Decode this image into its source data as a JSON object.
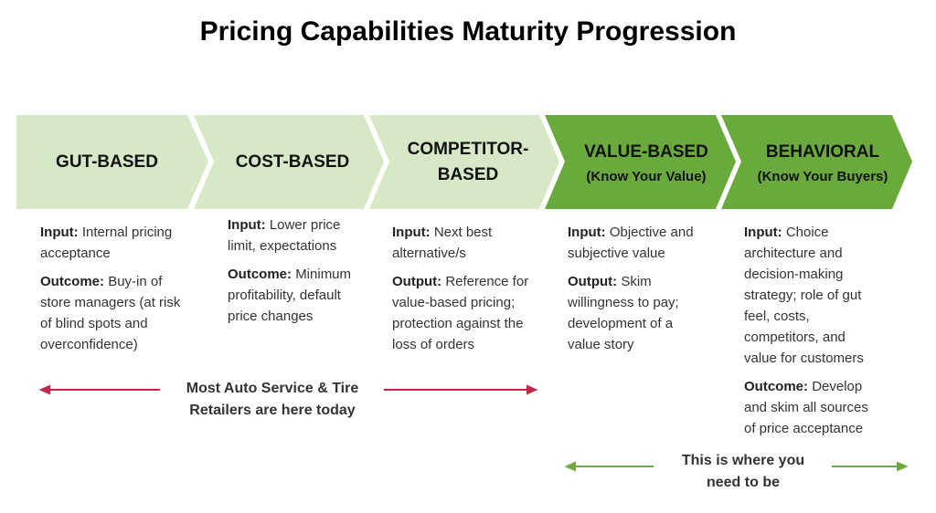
{
  "title": "Pricing Capabilities Maturity Progression",
  "stages": [
    {
      "label": "GUT-BASED",
      "items": [
        {
          "label": "Input:",
          "text": "Internal pricing acceptance"
        },
        {
          "label": "Outcome:",
          "text": "Buy-in of store managers (at risk of blind spots and overconfidence)"
        }
      ]
    },
    {
      "label": "COST-BASED",
      "items": [
        {
          "label": "Input:",
          "text": "Lower price limit, expectations"
        },
        {
          "label": "Outcome:",
          "text": "Minimum profitability, default price changes"
        }
      ]
    },
    {
      "label": "COMPETITOR-BASED",
      "items": [
        {
          "label": "Input:",
          "text": "Next best alternative/s"
        },
        {
          "label": "Output:",
          "text": "Reference for value-based pricing; protection against the loss of orders"
        }
      ]
    },
    {
      "label": "VALUE-BASED",
      "sublabel": "(Know Your Value)",
      "items": [
        {
          "label": "Input:",
          "text": "Objective and subjective value"
        },
        {
          "label": "Output:",
          "text": "Skim willingness to pay; development of a value story"
        }
      ]
    },
    {
      "label": "BEHAVIORAL",
      "sublabel": "(Know Your Buyers)",
      "items": [
        {
          "label": "Input:",
          "text": "Choice architecture and decision-making strategy; role of gut feel, costs, competitors, and value for customers"
        },
        {
          "label": "Outcome:",
          "text": "Develop and skim all sources of price acceptance"
        }
      ]
    }
  ],
  "annotations": [
    "Most Auto Service & Tire Retailers are here today",
    "This is where you need to be"
  ]
}
